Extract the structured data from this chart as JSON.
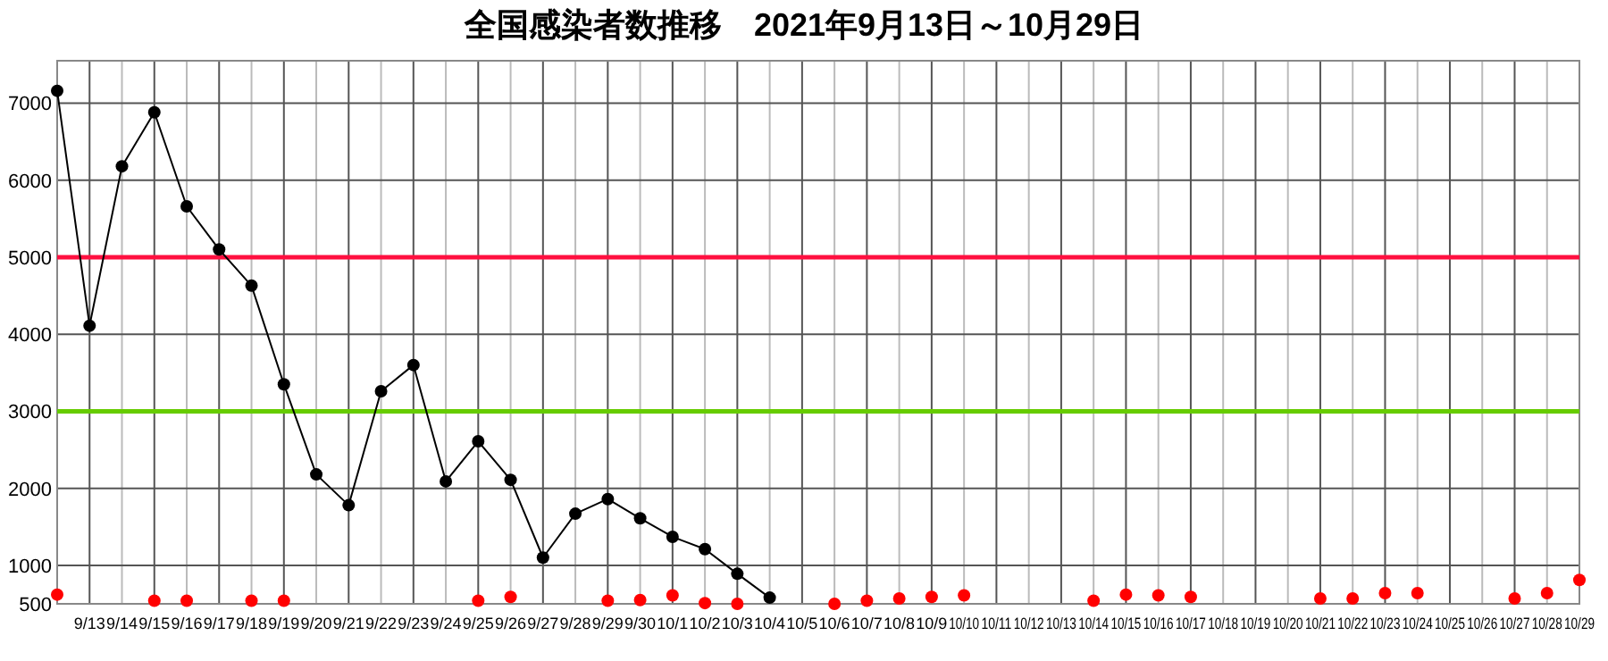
{
  "chart_data": {
    "type": "line",
    "title": "全国感染者数推移　2021年9月13日～10月29日",
    "categories": [
      null,
      "9/13",
      "9/14",
      "9/15",
      "9/16",
      "9/17",
      "9/18",
      "9/19",
      "9/20",
      "9/21",
      "9/22",
      "9/23",
      "9/24",
      "9/25",
      "9/26",
      "9/27",
      "9/28",
      "9/29",
      "9/30",
      "10/1",
      "10/2",
      "10/3",
      "10/4",
      "10/5",
      "10/6",
      "10/7",
      "10/8",
      "10/9",
      "10/10",
      "10/11",
      "10/12",
      "10/13",
      "10/14",
      "10/15",
      "10/16",
      "10/17",
      "10/18",
      "10/19",
      "10/20",
      "10/21",
      "10/22",
      "10/23",
      "10/24",
      "10/25",
      "10/26",
      "10/27",
      "10/28",
      "10/29"
    ],
    "series": [
      {
        "color": "#000000",
        "values": [
          7160,
          4110,
          6180,
          6880,
          5660,
          5100,
          4630,
          3350,
          2180,
          1780,
          3260,
          3600,
          2090,
          2610,
          2110,
          1100,
          1670,
          1860,
          1610,
          1370,
          1210,
          890,
          580,
          null,
          null,
          null,
          null,
          null,
          null,
          null,
          null,
          null,
          null,
          null,
          null,
          null,
          null,
          null,
          null,
          null,
          null,
          null,
          null,
          null,
          null,
          null,
          null,
          null
        ]
      },
      {
        "type": "scatter",
        "color": "#ff0000",
        "values": [
          620,
          null,
          null,
          540,
          540,
          null,
          540,
          540,
          null,
          null,
          null,
          null,
          null,
          540,
          590,
          null,
          null,
          540,
          550,
          610,
          510,
          500,
          null,
          null,
          500,
          540,
          570,
          590,
          610,
          null,
          null,
          null,
          540,
          620,
          610,
          590,
          null,
          null,
          null,
          570,
          570,
          640,
          640,
          null,
          null,
          570,
          640,
          810
        ]
      }
    ],
    "ylim": [
      500,
      7550
    ],
    "yticks": [
      500,
      1000,
      2000,
      3000,
      4000,
      5000,
      6000,
      7000
    ],
    "ref_lines": [
      {
        "axis": "y",
        "value": 5000,
        "color": "#ff1040"
      },
      {
        "axis": "y",
        "value": 3000,
        "color": "#66cc00"
      }
    ],
    "grid": true,
    "marker": "circle"
  }
}
